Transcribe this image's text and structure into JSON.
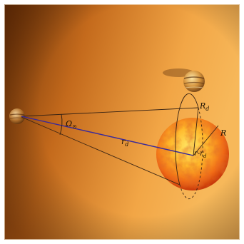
{
  "labels": {
    "solid_angle": "Ω",
    "solid_angle_sub": "⊙",
    "distance": "r",
    "distance_sub": "d",
    "disk_radius": "R",
    "disk_radius_sub": "d",
    "offset": "r-r",
    "offset_sub": "d",
    "star_radius": "R"
  },
  "colors": {
    "background_dark": "#7a3a08",
    "background_light": "#f0a84a",
    "star_core": "#ffd23a",
    "star_edge": "#d8420c",
    "sight_line": "#3a2a9a",
    "cone_lines": "#3a2414"
  }
}
